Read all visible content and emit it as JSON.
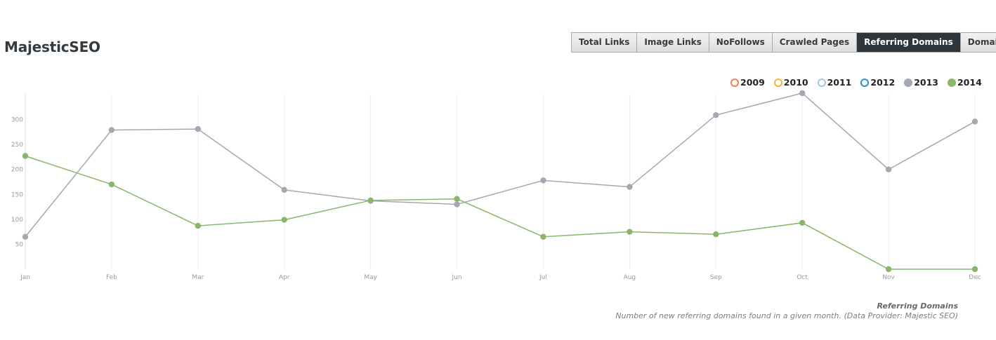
{
  "header": {
    "title": "MajesticSEO"
  },
  "tabs": [
    {
      "label": "Total Links",
      "active": false
    },
    {
      "label": "Image Links",
      "active": false
    },
    {
      "label": "NoFollows",
      "active": false
    },
    {
      "label": "Crawled Pages",
      "active": false
    },
    {
      "label": "Referring Domains",
      "active": true
    },
    {
      "label": "Domain URLs",
      "active": false
    }
  ],
  "caption": {
    "title": "Referring Domains",
    "description": "Number of new referring domains found in a given month. (Data Provider: Majestic SEO)"
  },
  "chart_data": {
    "type": "line",
    "title": "",
    "xlabel": "",
    "ylabel": "",
    "ylim": [
      0,
      350
    ],
    "yticks": [
      50,
      100,
      150,
      200,
      250,
      300
    ],
    "grid": "vertical",
    "legend_position": "top-right",
    "categories": [
      "Jan",
      "Feb",
      "Mar",
      "Apr",
      "May",
      "Jun",
      "Jul",
      "Aug",
      "Sep",
      "Oct",
      "Nov",
      "Dec"
    ],
    "legend": [
      {
        "name": "2009",
        "color": "#f0824a",
        "filled": false
      },
      {
        "name": "2010",
        "color": "#f5b731",
        "filled": false
      },
      {
        "name": "2011",
        "color": "#9fc6e3",
        "filled": false
      },
      {
        "name": "2012",
        "color": "#2f8fd0",
        "filled": false
      },
      {
        "name": "2013",
        "color": "#a2a9b2",
        "filled": true
      },
      {
        "name": "2014",
        "color": "#8ab66a",
        "filled": true
      }
    ],
    "series": [
      {
        "name": "2013",
        "color": "#a2a9b2",
        "values": [
          65,
          279,
          281,
          159,
          137,
          130,
          178,
          165,
          309,
          353,
          200,
          296
        ]
      },
      {
        "name": "2014",
        "color": "#8ab66a",
        "values": [
          227,
          170,
          87,
          99,
          138,
          141,
          65,
          75,
          70,
          93,
          0,
          0
        ]
      }
    ]
  }
}
